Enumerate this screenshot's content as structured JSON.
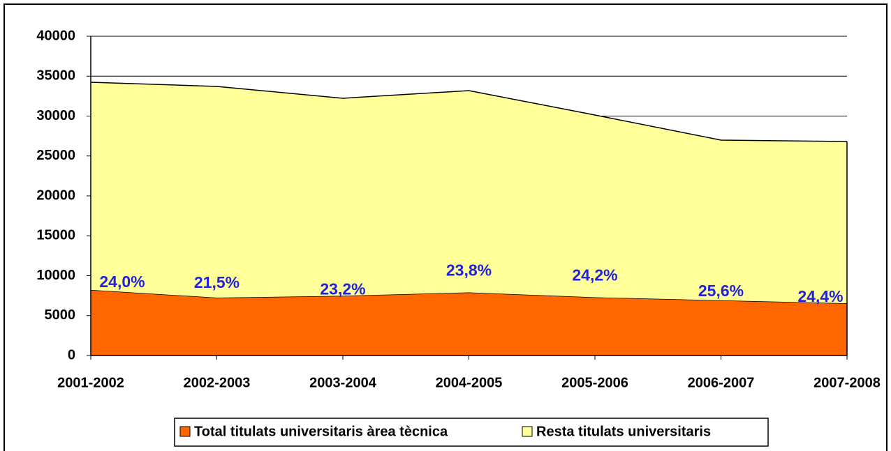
{
  "chart_data": {
    "type": "stacked_area",
    "categories": [
      "2001-2002",
      "2002-2003",
      "2003-2004",
      "2004-2005",
      "2005-2006",
      "2006-2007",
      "2007-2008"
    ],
    "series": [
      {
        "name": "Total titulats universitaris àrea tècnica",
        "color": "#ff6600",
        "values": [
          8220,
          7250,
          7480,
          7900,
          7290,
          6910,
          6540
        ]
      },
      {
        "name": "Resta titulats universitaris",
        "color": "#ffff99",
        "values": [
          26020,
          26460,
          24750,
          25290,
          22840,
          20080,
          20270
        ]
      }
    ],
    "annotations": [
      "24,0%",
      "21,5%",
      "23,2%",
      "23,8%",
      "24,2%",
      "25,6%",
      "24,4%"
    ],
    "ylim": [
      0,
      40000
    ],
    "yticks": [
      0,
      5000,
      10000,
      15000,
      20000,
      25000,
      30000,
      35000,
      40000
    ],
    "grid": true,
    "legend": "bottom"
  }
}
